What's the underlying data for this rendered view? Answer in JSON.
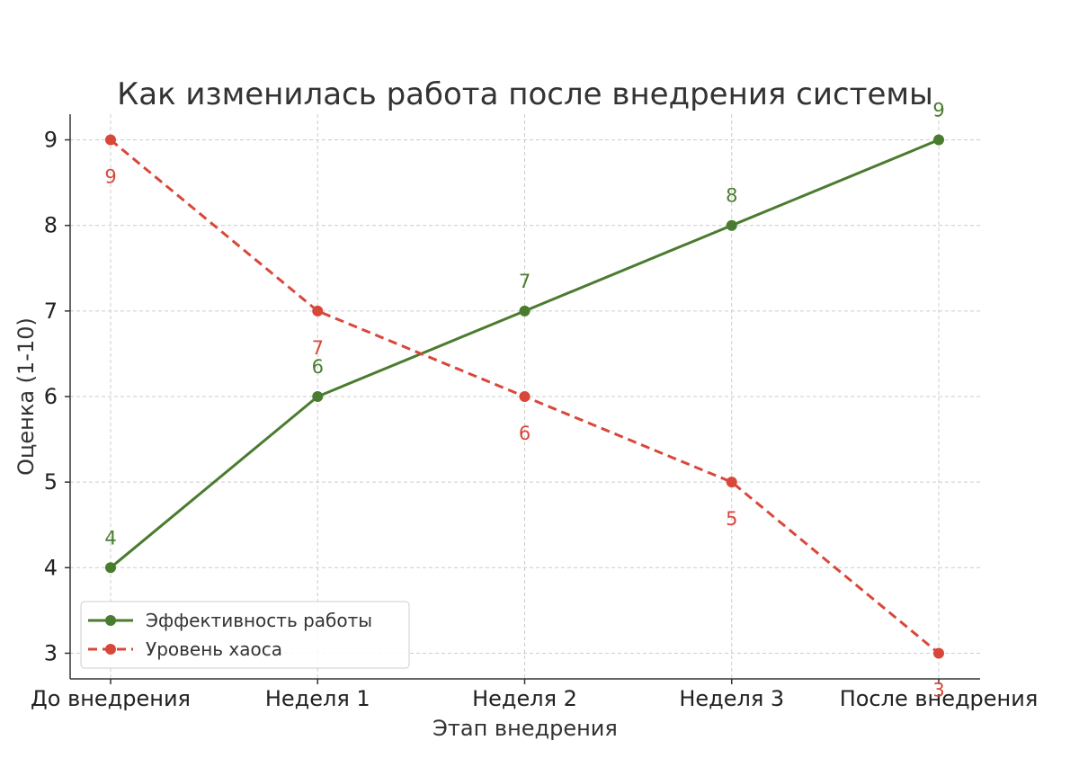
{
  "chart_data": {
    "type": "line",
    "title": "Как изменилась работа после внедрения системы",
    "xlabel": "Этап внедрения",
    "ylabel": "Оценка (1-10)",
    "categories": [
      "До внедрения",
      "Неделя 1",
      "Неделя 2",
      "Неделя 3",
      "После внедрения"
    ],
    "ylim": [
      2.7,
      9.3
    ],
    "yticks": [
      3,
      4,
      5,
      6,
      7,
      8,
      9
    ],
    "grid": true,
    "legend_position": "bottom-left",
    "series": [
      {
        "name": "Эффективность работы",
        "values": [
          4,
          6,
          7,
          8,
          9
        ],
        "color": "#4a7c2f",
        "line_style": "solid",
        "label_position": "above"
      },
      {
        "name": "Уровень хаоса",
        "values": [
          9,
          7,
          6,
          5,
          3
        ],
        "color": "#d9473a",
        "line_style": "dashed",
        "label_position": "below"
      }
    ]
  }
}
